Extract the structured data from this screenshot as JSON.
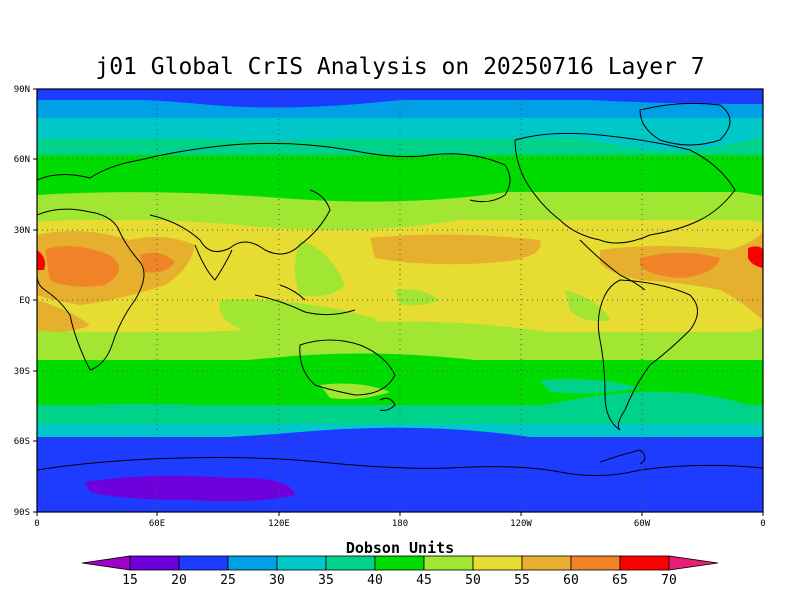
{
  "title": "j01 Global CrIS Analysis on 20250716 Layer 7",
  "colorbar": {
    "title": "Dobson Units",
    "labels": [
      "15",
      "20",
      "25",
      "30",
      "35",
      "40",
      "45",
      "50",
      "55",
      "60",
      "65",
      "70"
    ],
    "colors": [
      "#a000c8",
      "#6e00dc",
      "#1e3cff",
      "#00a0e6",
      "#00c8c8",
      "#00d28c",
      "#00dc00",
      "#a0e632",
      "#e6dc32",
      "#e6af2d",
      "#f08228",
      "#fa0000",
      "#e61e78"
    ]
  },
  "y_axis_labels": [
    "90N",
    "60N",
    "30N",
    "EQ",
    "30S",
    "60S",
    "90S"
  ],
  "x_axis_labels": [
    "0",
    "60E",
    "120E",
    "180",
    "120W",
    "60W",
    "0"
  ]
}
